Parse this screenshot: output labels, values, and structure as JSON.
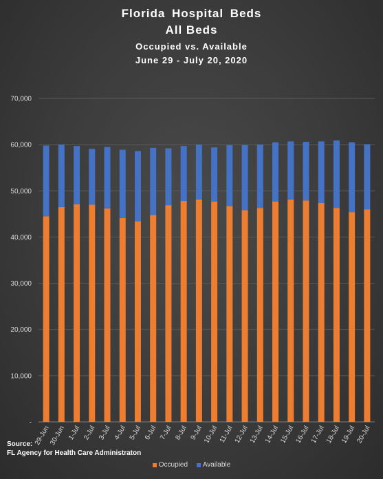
{
  "chart_data": {
    "type": "bar",
    "stacked": true,
    "title": "Florida  Hospital  Beds",
    "title_line2": "All Beds",
    "subtitle": "Occupied vs. Available",
    "date_range": "June 29 - July 20, 2020",
    "categories": [
      "29-Jun",
      "30-Jun",
      "1-Jul",
      "2-Jul",
      "3-Jul",
      "4-Jul",
      "5-Jul",
      "6-Jul",
      "7-Jul",
      "8-Jul",
      "9-Jul",
      "10-Jul",
      "11-Jul",
      "12-Jul",
      "13-Jul",
      "14-Jul",
      "15-Jul",
      "16-Jul",
      "17-Jul",
      "18-Jul",
      "19-Jul",
      "20-Jul"
    ],
    "series": [
      {
        "name": "Occupied",
        "color": "#ed7d31",
        "values": [
          44500,
          46500,
          47100,
          47000,
          46200,
          44100,
          43400,
          44800,
          46900,
          47800,
          48100,
          47700,
          46700,
          45800,
          46300,
          47700,
          48100,
          47900,
          47400,
          46300,
          45400,
          46000
        ]
      },
      {
        "name": "Available",
        "color": "#4472c4",
        "values": [
          15300,
          13500,
          12600,
          12100,
          13300,
          14800,
          15200,
          14500,
          12300,
          11900,
          11900,
          11700,
          13200,
          14100,
          13700,
          12800,
          12600,
          12700,
          13300,
          14600,
          15100,
          14100
        ]
      }
    ],
    "ylim": [
      0,
      70000
    ],
    "yticks": [
      "-",
      "10,000",
      "20,000",
      "30,000",
      "40,000",
      "50,000",
      "60,000",
      "70,000"
    ],
    "grid": true,
    "legend_position": "bottom"
  },
  "source": {
    "label": "Source:",
    "text": "FL Agency for Health Care Administraton"
  },
  "legend": {
    "occupied": "Occupied",
    "available": "Available"
  }
}
